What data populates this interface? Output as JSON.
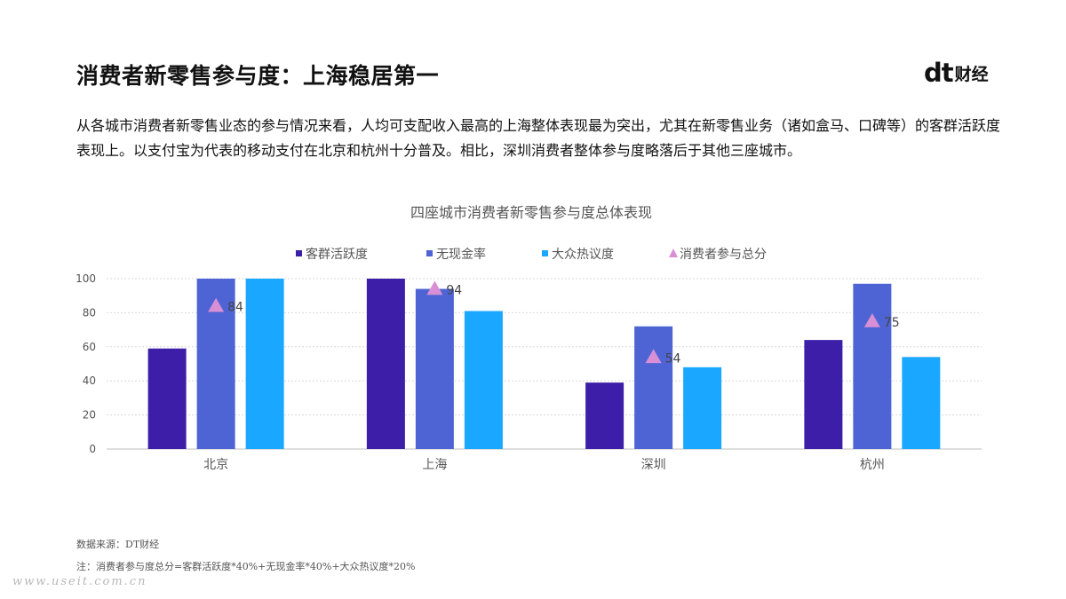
{
  "page": {
    "title": "消费者新零售参与度：上海稳居第一",
    "brand": {
      "mark": "dt",
      "text": "财经"
    },
    "intro": "从各城市消费者新零售业态的参与情况来看，人均可支配收入最高的上海整体表现最为突出，尤其在新零售业务（诸如盒马、口碑等）的客群活跃度表现上。以支付宝为代表的移动支付在北京和杭州十分普及。相比，深圳消费者整体参与度略落后于其他三座城市。",
    "source": "数据来源：DT财经",
    "note": "注：消费者参与度总分=客群活跃度*40%+无现金率*40%+大众热议度*20%",
    "watermark": "www.useit.com.cn"
  },
  "chart_data": {
    "type": "bar",
    "title": "四座城市消费者新零售参与度总体表现",
    "categories": [
      "北京",
      "上海",
      "深圳",
      "杭州"
    ],
    "series": [
      {
        "name": "客群活跃度",
        "values": [
          59,
          100,
          39,
          64
        ],
        "color": "#3d1ea8"
      },
      {
        "name": "无现金率",
        "values": [
          100,
          94,
          72,
          97
        ],
        "color": "#4f64d4"
      },
      {
        "name": "大众热议度",
        "values": [
          100,
          81,
          48,
          54
        ],
        "color": "#1aa7ff"
      }
    ],
    "scatter_series": {
      "name": "消费者参与总分",
      "values": [
        84,
        94,
        54,
        75
      ],
      "labels": [
        "84",
        "94",
        "54",
        "75"
      ],
      "color": "#d98fd6",
      "marker": "triangle"
    },
    "yticks": [
      "0",
      "20",
      "40",
      "60",
      "80",
      "100"
    ],
    "ylim": [
      0,
      100
    ],
    "grid": true,
    "legend": "top"
  }
}
